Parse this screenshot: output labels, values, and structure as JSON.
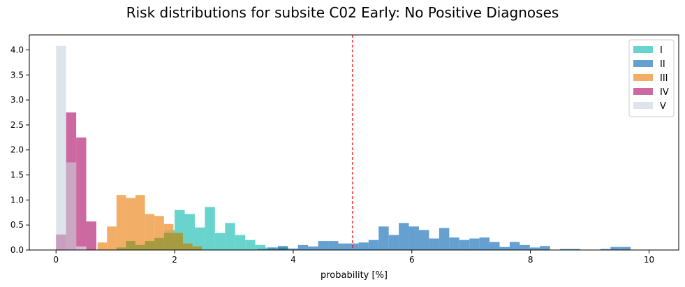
{
  "chart_data": {
    "type": "bar",
    "title": "Risk distributions  for subsite C02 Early: No Positive Diagnoses",
    "xlabel": "probability [%]",
    "ylabel": "",
    "xlim": [
      -0.45,
      10.5
    ],
    "ylim": [
      0,
      4.3
    ],
    "xticks": [
      0,
      2,
      4,
      6,
      8,
      10
    ],
    "yticks": [
      0.0,
      0.5,
      1.0,
      1.5,
      2.0,
      2.5,
      3.0,
      3.5,
      4.0
    ],
    "xtick_labels": [
      "0",
      "2",
      "4",
      "6",
      "8",
      "10"
    ],
    "ytick_labels": [
      "0.0",
      "0.5",
      "1.0",
      "1.5",
      "2.0",
      "2.5",
      "3.0",
      "3.5",
      "4.0"
    ],
    "reference_line": {
      "x": 5.0,
      "color": "#ff0000",
      "style": "dashed"
    },
    "grid": false,
    "legend_position": "top-right",
    "series": [
      {
        "name": "I",
        "color": "#4ecdc4",
        "opacity": 0.85,
        "bins": [
          [
            1.48,
            1.65,
            0.05
          ],
          [
            1.65,
            1.83,
            0.15
          ],
          [
            1.83,
            2.0,
            0.4
          ],
          [
            2.0,
            2.17,
            0.8
          ],
          [
            2.17,
            2.34,
            0.72
          ],
          [
            2.34,
            2.51,
            0.45
          ],
          [
            2.51,
            2.68,
            0.86
          ],
          [
            2.68,
            2.85,
            0.34
          ],
          [
            2.85,
            3.02,
            0.54
          ],
          [
            3.02,
            3.19,
            0.3
          ],
          [
            3.19,
            3.36,
            0.2
          ],
          [
            3.36,
            3.53,
            0.1
          ],
          [
            3.53,
            3.7,
            0.05
          ],
          [
            3.7,
            3.87,
            0.02
          ]
        ]
      },
      {
        "name": "II",
        "color": "#3f88c5",
        "opacity": 0.8,
        "bins": [
          [
            3.4,
            3.57,
            0.02
          ],
          [
            3.57,
            3.74,
            0.05
          ],
          [
            3.74,
            3.91,
            0.08
          ],
          [
            3.91,
            4.08,
            0.03
          ],
          [
            4.08,
            4.25,
            0.1
          ],
          [
            4.25,
            4.42,
            0.07
          ],
          [
            4.42,
            4.59,
            0.18
          ],
          [
            4.59,
            4.76,
            0.18
          ],
          [
            4.76,
            4.93,
            0.13
          ],
          [
            4.93,
            5.1,
            0.13
          ],
          [
            5.1,
            5.27,
            0.15
          ],
          [
            5.27,
            5.44,
            0.2
          ],
          [
            5.44,
            5.61,
            0.47
          ],
          [
            5.61,
            5.78,
            0.3
          ],
          [
            5.78,
            5.95,
            0.54
          ],
          [
            5.95,
            6.12,
            0.47
          ],
          [
            6.12,
            6.29,
            0.4
          ],
          [
            6.29,
            6.46,
            0.23
          ],
          [
            6.46,
            6.63,
            0.44
          ],
          [
            6.63,
            6.8,
            0.25
          ],
          [
            6.8,
            6.97,
            0.2
          ],
          [
            6.97,
            7.14,
            0.23
          ],
          [
            7.14,
            7.31,
            0.25
          ],
          [
            7.31,
            7.48,
            0.16
          ],
          [
            7.48,
            7.65,
            0.06
          ],
          [
            7.65,
            7.82,
            0.16
          ],
          [
            7.82,
            7.99,
            0.1
          ],
          [
            7.99,
            8.16,
            0.05
          ],
          [
            8.16,
            8.33,
            0.08
          ],
          [
            8.5,
            8.67,
            0.02
          ],
          [
            8.67,
            8.84,
            0.02
          ],
          [
            9.18,
            9.35,
            0.02
          ],
          [
            9.35,
            9.52,
            0.06
          ],
          [
            9.52,
            9.69,
            0.06
          ]
        ]
      },
      {
        "name": "III",
        "color": "#f0a04b",
        "opacity": 0.85,
        "bins": [
          [
            0.7,
            0.86,
            0.15
          ],
          [
            0.86,
            1.02,
            0.47
          ],
          [
            1.02,
            1.18,
            1.1
          ],
          [
            1.18,
            1.34,
            1.04
          ],
          [
            1.34,
            1.5,
            1.1
          ],
          [
            1.5,
            1.66,
            0.72
          ],
          [
            1.66,
            1.82,
            0.68
          ],
          [
            1.82,
            1.98,
            0.52
          ],
          [
            1.98,
            2.14,
            0.34
          ],
          [
            2.14,
            2.3,
            0.13
          ],
          [
            2.3,
            2.46,
            0.07
          ]
        ]
      },
      {
        "name": "IV",
        "color": "#c0448a",
        "opacity": 0.8,
        "bins": [
          [
            0.17,
            0.34,
            2.75
          ],
          [
            0.34,
            0.51,
            2.25
          ],
          [
            0.51,
            0.68,
            0.57
          ]
        ]
      },
      {
        "name": "V",
        "color": "#d7dfe8",
        "opacity": 0.85,
        "bins": [
          [
            0.0,
            0.17,
            4.08
          ],
          [
            0.17,
            0.34,
            1.75
          ],
          [
            0.34,
            0.51,
            0.07
          ]
        ]
      }
    ],
    "overlap_overrides": [
      {
        "note": "colors where later series overlays earlier",
        "x0": 0.0,
        "x1": 0.17,
        "y1": 0.31,
        "color": "#c8a0bd"
      },
      {
        "x0": 0.17,
        "x1": 0.34,
        "y0": 0.0,
        "y1": 1.75,
        "color": "#caa8c3"
      },
      {
        "x0": 0.34,
        "x1": 0.51,
        "y0": 0.0,
        "y1": 0.07,
        "color": "#d9b8cf"
      },
      {
        "x0": 1.02,
        "x1": 1.18,
        "y0": 0.0,
        "y1": 0.05,
        "color": "#a79b41"
      },
      {
        "x0": 1.18,
        "x1": 1.34,
        "y0": 0.0,
        "y1": 0.18,
        "color": "#a79b41"
      },
      {
        "x0": 1.34,
        "x1": 1.5,
        "y0": 0.0,
        "y1": 0.1,
        "color": "#a79b41"
      },
      {
        "x0": 1.5,
        "x1": 1.66,
        "y0": 0.0,
        "y1": 0.18,
        "color": "#a79b41"
      },
      {
        "x0": 1.66,
        "x1": 1.82,
        "y0": 0.0,
        "y1": 0.24,
        "color": "#a79b41"
      },
      {
        "x0": 1.82,
        "x1": 1.98,
        "y0": 0.0,
        "y1": 0.34,
        "color": "#a79b41"
      },
      {
        "x0": 1.98,
        "x1": 2.14,
        "y0": 0.0,
        "y1": 0.34,
        "color": "#a79b41"
      },
      {
        "x0": 2.14,
        "x1": 2.3,
        "y0": 0.0,
        "y1": 0.13,
        "color": "#a79b41"
      },
      {
        "x0": 2.3,
        "x1": 2.46,
        "y0": 0.0,
        "y1": 0.07,
        "color": "#a79b41"
      },
      {
        "x0": 3.74,
        "x1": 3.91,
        "y0": 0.0,
        "y1": 0.05,
        "color": "#2f8fa5"
      }
    ]
  }
}
